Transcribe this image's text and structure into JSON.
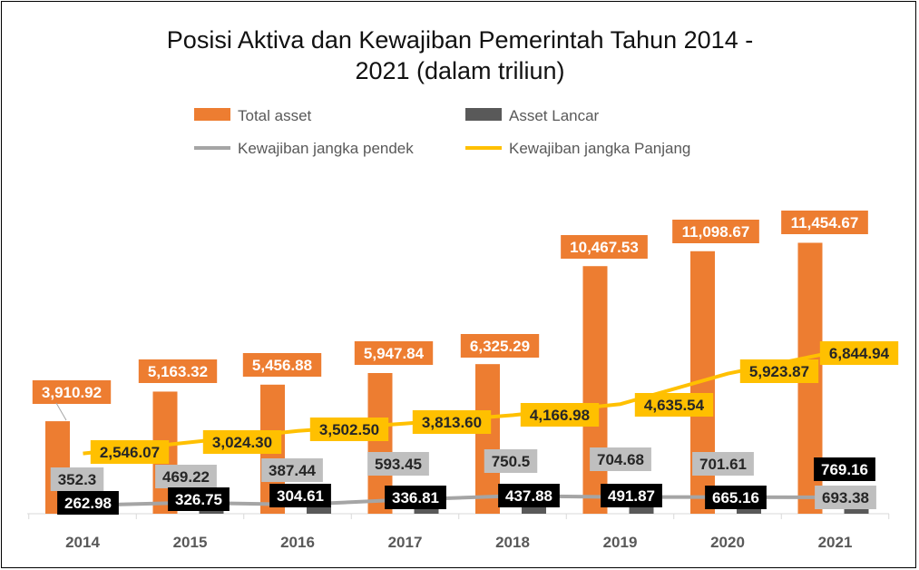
{
  "chart_data": {
    "type": "bar",
    "title_line1": "Posisi Aktiva dan Kewajiban Pemerintah Tahun 2014 -",
    "title_line2": "2021 (dalam triliun)",
    "categories": [
      "2014",
      "2015",
      "2016",
      "2017",
      "2018",
      "2019",
      "2020",
      "2021"
    ],
    "series": [
      {
        "name": "Total asset",
        "kind": "bar",
        "color": "#ED7D31",
        "values": [
          3910.92,
          5163.32,
          5456.88,
          5947.84,
          6325.29,
          10467.53,
          11098.67,
          11454.67
        ],
        "labels": [
          "3,910.92",
          "5,163.32",
          "5,456.88",
          "5,947.84",
          "6,325.29",
          "10,467.53",
          "11,098.67",
          "11,454.67"
        ]
      },
      {
        "name": "Asset Lancar",
        "kind": "bar",
        "color": "#595959",
        "values": [
          262.98,
          326.75,
          304.61,
          336.81,
          437.88,
          491.87,
          665.16,
          769.16
        ],
        "labels": [
          "262.98",
          "326.75",
          "304.61",
          "336.81",
          "437.88",
          "491.87",
          "665.16",
          "769.16"
        ]
      },
      {
        "name": "Kewajiban jangka pendek",
        "kind": "line",
        "color": "#A5A5A5",
        "values": [
          352.3,
          469.22,
          387.44,
          593.45,
          750.5,
          704.68,
          701.61,
          693.38
        ],
        "labels": [
          "352.3",
          "469.22",
          "387.44",
          "593.45",
          "750.5",
          "704.68",
          "701.61",
          "693.38"
        ]
      },
      {
        "name": "Kewajiban jangka Panjang",
        "kind": "line",
        "color": "#FFC000",
        "values": [
          2546.07,
          3024.3,
          3502.5,
          3813.6,
          4166.98,
          4635.54,
          5923.87,
          6844.94
        ],
        "labels": [
          "2,546.07",
          "3,024.30",
          "3,502.50",
          "3,813.60",
          "4,166.98",
          "4,635.54",
          "5,923.87",
          "6,844.94"
        ]
      }
    ],
    "legend_position": "top",
    "grid": false
  }
}
